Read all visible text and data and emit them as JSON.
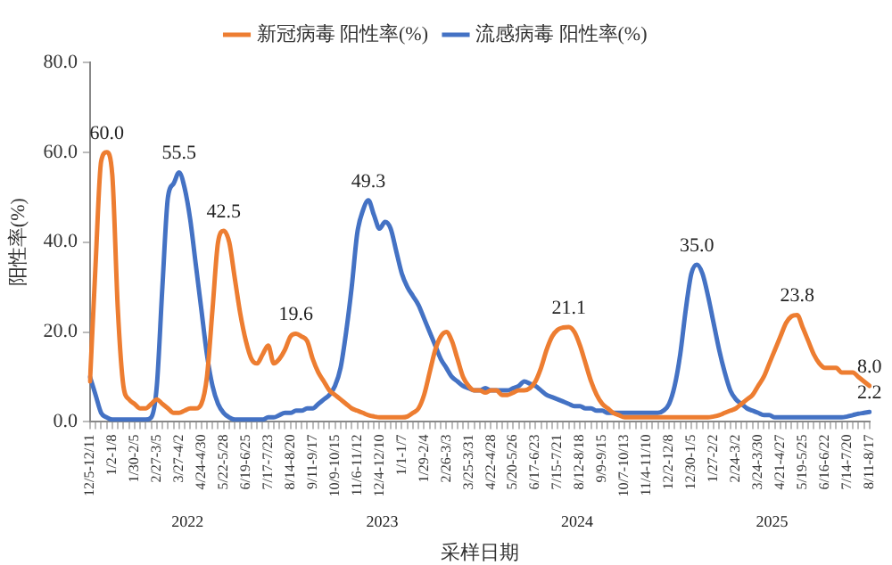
{
  "chart_data": {
    "type": "line",
    "xlabel": "采样日期",
    "ylabel": "阳性率(%)",
    "categories": [
      "12/5-12/11",
      null,
      null,
      null,
      "1/2-1/8",
      null,
      null,
      null,
      "1/30-2/5",
      null,
      null,
      null,
      "2/27-3/5",
      null,
      null,
      null,
      "3/27-4/2",
      null,
      null,
      null,
      "4/24-4/30",
      null,
      null,
      null,
      "5/22-5/28",
      null,
      null,
      null,
      "6/19-6/25",
      null,
      null,
      null,
      "7/17-7/23",
      null,
      null,
      null,
      "8/14-8/20",
      null,
      null,
      null,
      "9/11-9/17",
      null,
      null,
      null,
      "10/9-10/15",
      null,
      null,
      null,
      "11/6-11/12",
      null,
      null,
      null,
      "12/4-12/10",
      null,
      null,
      null,
      "1/1-1/7",
      null,
      null,
      null,
      "1/29-2/4",
      null,
      null,
      null,
      "2/26-3/3",
      null,
      null,
      null,
      "3/25-3/31",
      null,
      null,
      null,
      "4/22-4/28",
      null,
      null,
      null,
      "5/20-5/26",
      null,
      null,
      null,
      "6/17-6/23",
      null,
      null,
      null,
      "7/15-7/21",
      null,
      null,
      null,
      "8/12-8/18",
      null,
      null,
      null,
      "9/9-9/15",
      null,
      null,
      null,
      "10/7-10/13",
      null,
      null,
      null,
      "11/4-11/10",
      null,
      null,
      null,
      "12/2-12/8",
      null,
      null,
      null,
      "12/30-1/5",
      null,
      null,
      null,
      "1/27-2/2",
      null,
      null,
      null,
      "2/24-3/2",
      null,
      null,
      null,
      "3/24-3/30",
      null,
      null,
      null,
      "4/21-4/27",
      null,
      null,
      null,
      "5/19-5/25",
      null,
      null,
      null,
      "6/16-6/22",
      null,
      null,
      null,
      "7/14-7/20",
      null,
      null,
      null,
      "8/11-8/17"
    ],
    "series": [
      {
        "name": "新冠病毒 阳性率(%)",
        "color": "#ed7d31",
        "values": [
          9,
          35,
          58,
          60,
          55,
          25,
          8,
          5,
          4,
          3,
          3,
          4,
          5,
          4,
          3,
          2,
          2,
          2.5,
          3,
          3,
          4,
          10,
          25,
          40,
          42.5,
          40,
          32,
          24,
          18,
          14,
          13,
          15,
          17,
          13,
          14,
          16,
          19,
          19.6,
          19,
          18,
          14,
          11,
          9,
          7,
          6,
          5,
          4,
          3,
          2.5,
          2,
          1.5,
          1.2,
          1,
          1,
          1,
          1,
          1,
          1.2,
          2,
          3,
          6,
          11,
          16,
          19,
          20,
          18,
          14,
          10,
          8,
          7,
          7,
          6.5,
          7,
          7,
          6,
          6,
          6.5,
          7,
          7,
          7.5,
          9,
          12,
          16,
          19,
          20.5,
          21,
          21.1,
          20,
          17,
          13,
          9,
          6,
          4,
          3,
          2,
          1.5,
          1,
          1,
          1,
          1,
          1,
          1,
          1,
          1,
          1,
          1,
          1,
          1,
          1,
          1,
          1,
          1,
          1.2,
          1.5,
          2,
          2.5,
          3,
          4,
          5,
          6,
          8,
          10,
          13,
          16,
          19,
          22,
          23.5,
          23.8,
          21,
          18,
          15,
          13,
          12,
          12,
          12,
          11,
          11,
          11,
          10,
          9,
          8.0
        ],
        "value_labels": [
          null,
          null,
          null,
          "60.0",
          null,
          null,
          null,
          null,
          null,
          null,
          null,
          null,
          null,
          null,
          null,
          null,
          null,
          null,
          null,
          null,
          null,
          null,
          null,
          null,
          "42.5",
          null,
          null,
          null,
          null,
          null,
          null,
          null,
          null,
          null,
          null,
          null,
          null,
          "19.6",
          null,
          null,
          null,
          null,
          null,
          null,
          null,
          null,
          null,
          null,
          null,
          null,
          null,
          null,
          null,
          null,
          null,
          null,
          null,
          null,
          null,
          null,
          null,
          null,
          null,
          null,
          null,
          null,
          null,
          null,
          null,
          null,
          null,
          null,
          null,
          null,
          null,
          null,
          null,
          null,
          null,
          null,
          null,
          null,
          null,
          null,
          null,
          null,
          "21.1",
          null,
          null,
          null,
          null,
          null,
          null,
          null,
          null,
          null,
          null,
          null,
          null,
          null,
          null,
          null,
          null,
          null,
          null,
          null,
          null,
          null,
          null,
          null,
          null,
          null,
          null,
          null,
          null,
          null,
          null,
          null,
          null,
          null,
          null,
          null,
          null,
          null,
          null,
          null,
          null,
          "23.8",
          null,
          null,
          null,
          null,
          null,
          null,
          null,
          null,
          null,
          null,
          null,
          null,
          "8.0"
        ]
      },
      {
        "name": "流感病毒 阳性率(%)",
        "color": "#4472c4",
        "values": [
          10,
          6,
          2,
          1,
          0.5,
          0.5,
          0.5,
          0.5,
          0.5,
          0.5,
          0.5,
          1,
          8,
          30,
          50,
          53,
          55.5,
          52,
          45,
          35,
          25,
          15,
          8,
          4,
          2,
          1,
          0.5,
          0.5,
          0.5,
          0.5,
          0.5,
          0.5,
          1,
          1,
          1.5,
          2,
          2,
          2.5,
          2.5,
          3,
          3,
          4,
          5,
          6,
          8,
          12,
          20,
          30,
          42,
          47,
          49.3,
          46,
          43,
          44.5,
          43,
          38,
          33,
          30,
          28,
          26,
          23,
          20,
          17,
          14,
          12,
          10,
          9,
          8,
          7.5,
          7,
          7,
          7.5,
          7,
          7,
          7,
          7,
          7.5,
          8,
          9,
          8.5,
          8,
          7,
          6,
          5.5,
          5,
          4.5,
          4,
          3.5,
          3.5,
          3,
          3,
          2.5,
          2.5,
          2,
          2,
          2,
          2,
          2,
          2,
          2,
          2,
          2,
          2,
          2.5,
          4,
          8,
          15,
          25,
          33,
          35.0,
          33,
          28,
          22,
          16,
          11,
          7,
          5,
          4,
          3,
          2.5,
          2,
          1.5,
          1.5,
          1,
          1,
          1,
          1,
          1,
          1,
          1,
          1,
          1,
          1,
          1,
          1,
          1,
          1.2,
          1.5,
          1.8,
          2,
          2.2
        ],
        "value_labels": [
          null,
          null,
          null,
          null,
          null,
          null,
          null,
          null,
          null,
          null,
          null,
          null,
          null,
          null,
          null,
          null,
          "55.5",
          null,
          null,
          null,
          null,
          null,
          null,
          null,
          null,
          null,
          null,
          null,
          null,
          null,
          null,
          null,
          null,
          null,
          null,
          null,
          null,
          null,
          null,
          null,
          null,
          null,
          null,
          null,
          null,
          null,
          null,
          null,
          null,
          null,
          "49.3",
          null,
          null,
          null,
          null,
          null,
          null,
          null,
          null,
          null,
          null,
          null,
          null,
          null,
          null,
          null,
          null,
          null,
          null,
          null,
          null,
          null,
          null,
          null,
          null,
          null,
          null,
          null,
          null,
          null,
          null,
          null,
          null,
          null,
          null,
          null,
          null,
          null,
          null,
          null,
          null,
          null,
          null,
          null,
          null,
          null,
          null,
          null,
          null,
          null,
          null,
          null,
          null,
          null,
          null,
          null,
          null,
          null,
          null,
          "35.0",
          null,
          null,
          null,
          null,
          null,
          null,
          null,
          null,
          null,
          null,
          null,
          null,
          null,
          null,
          null,
          null,
          null,
          null,
          null,
          null,
          null,
          null,
          null,
          null,
          null,
          null,
          null,
          null,
          null,
          null,
          "2.2"
        ]
      }
    ],
    "ylim": [
      0,
      80
    ],
    "yticks": [
      {
        "value": 0,
        "label": "0.0"
      },
      {
        "value": 20,
        "label": "20.0"
      },
      {
        "value": 40,
        "label": "40.0"
      },
      {
        "value": 60,
        "label": "60.0"
      },
      {
        "value": 80,
        "label": "80.0"
      }
    ],
    "legend": "top",
    "marker": "none",
    "line_style": "solid",
    "annotations": [
      "2022",
      "2023",
      "2024",
      "2025"
    ]
  }
}
